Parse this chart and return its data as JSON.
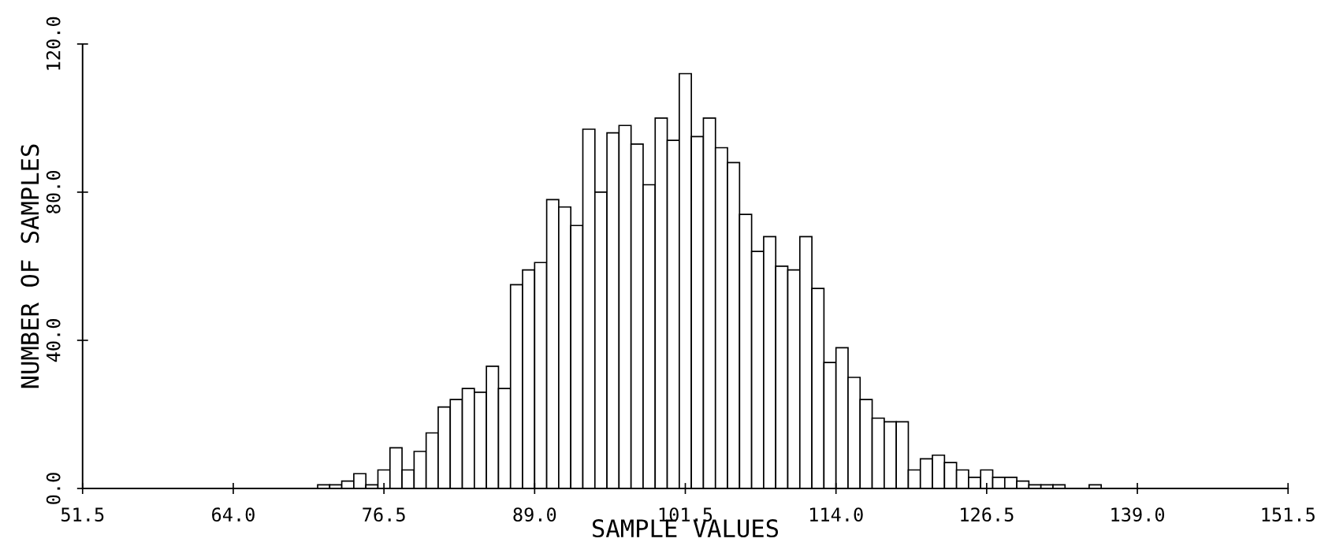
{
  "chart_data": {
    "type": "histogram",
    "xlabel": "SAMPLE VALUES",
    "ylabel": "NUMBER OF SAMPLES",
    "color": "#ffffff",
    "bins": [
      71,
      72,
      73,
      74,
      75,
      76,
      77,
      78,
      79,
      80,
      81,
      82,
      83,
      84,
      85,
      86,
      87,
      88,
      89,
      90,
      91,
      92,
      93,
      94,
      95,
      96,
      97,
      98,
      99,
      100,
      101,
      102,
      103,
      104,
      105,
      106,
      107,
      108,
      109,
      110,
      111,
      112,
      113,
      114,
      115,
      116,
      117,
      118,
      119,
      120,
      121,
      122,
      123,
      124,
      125,
      126,
      127,
      128,
      129,
      130,
      131,
      132,
      133,
      134,
      135,
      136
    ],
    "values": [
      1,
      1,
      2,
      4,
      1,
      5,
      11,
      5,
      10,
      15,
      22,
      24,
      27,
      26,
      33,
      27,
      55,
      59,
      61,
      78,
      76,
      71,
      97,
      80,
      96,
      98,
      93,
      82,
      100,
      94,
      112,
      95,
      100,
      92,
      88,
      74,
      64,
      68,
      60,
      59,
      68,
      54,
      34,
      38,
      30,
      24,
      19,
      18,
      18,
      5,
      8,
      9,
      7,
      5,
      3,
      5,
      3,
      3,
      2,
      1,
      1,
      1,
      0,
      0,
      1
    ],
    "xlim": [
      51.5,
      151.5
    ],
    "xticks": [
      {
        "value": 51.5,
        "label": "51.5"
      },
      {
        "value": 64.0,
        "label": "64.0"
      },
      {
        "value": 76.5,
        "label": "76.5"
      },
      {
        "value": 89.0,
        "label": "89.0"
      },
      {
        "value": 101.5,
        "label": "101.5"
      },
      {
        "value": 114.0,
        "label": "114.0"
      },
      {
        "value": 126.5,
        "label": "126.5"
      },
      {
        "value": 139.0,
        "label": "139.0"
      },
      {
        "value": 151.5,
        "label": "151.5"
      }
    ],
    "ylim": [
      0,
      120
    ],
    "yticks": [
      {
        "value": 0,
        "label": "0.0"
      },
      {
        "value": 40,
        "label": "40.0"
      },
      {
        "value": 80,
        "label": "80.0"
      },
      {
        "value": 120,
        "label": "120.0"
      }
    ],
    "grid": false,
    "legend": false
  }
}
